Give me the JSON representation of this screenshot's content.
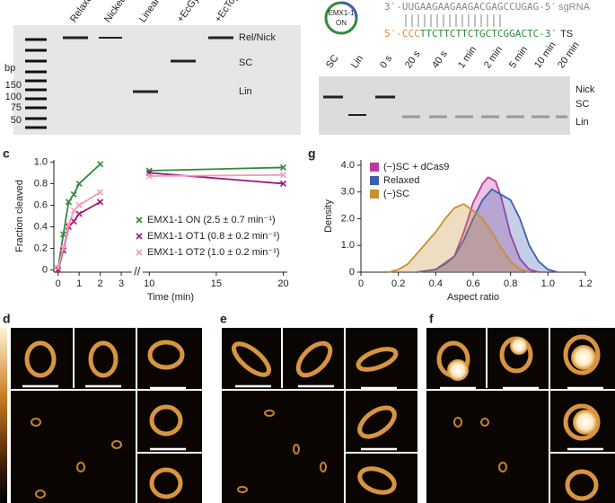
{
  "gel_a": {
    "lanes": [
      "Relaxed",
      "Nicked",
      "Linear",
      "+EcGyr",
      "+EcTopoI"
    ],
    "ladder_unit": "bp",
    "ladder": [
      "150",
      "100",
      "75",
      "50"
    ],
    "bands": [
      "Rel/Nick",
      "SC",
      "Lin"
    ]
  },
  "gel_b": {
    "badge": [
      "EMX1-1",
      "ON"
    ],
    "sgrna": {
      "seq": "3′-UUGAAGAAGAAGACGAGCCUGAG-5′",
      "label": "sgRNA"
    },
    "ts": {
      "prefix": "5′-CCC",
      "seq": "TTCTTCTTCTGCTCGGACTC-3′",
      "label": "TS"
    },
    "lanes": [
      "SC",
      "Lin",
      "0 s",
      "20 s",
      "40 s",
      "1 min",
      "2 min",
      "5 min",
      "10 min",
      "20 min"
    ],
    "bands": [
      "Nick",
      "SC",
      "Lin"
    ]
  },
  "panel_letters": [
    "c",
    "g",
    "d",
    "e",
    "f"
  ],
  "chart_data": [
    {
      "type": "scatter",
      "xlabel": "Time (min)",
      "ylabel": "Fraction cleaved",
      "xlim_segments": [
        [
          -0.2,
          3.5
        ],
        [
          9.5,
          20.3
        ]
      ],
      "xticks": [
        0,
        1,
        2,
        3,
        10,
        15,
        20
      ],
      "ylim": [
        -0.02,
        1.02
      ],
      "yticks": [
        0,
        0.2,
        0.4,
        0.6,
        0.8,
        {
          "value": 1,
          "label": "1.0"
        }
      ],
      "series": [
        {
          "name": "EMX1-1 ON (2.5 ± 0.7 min⁻¹)",
          "color": "#2e8b3a",
          "x": [
            0,
            0.25,
            0.5,
            0.75,
            1,
            2,
            10,
            20
          ],
          "values": [
            0.02,
            0.33,
            0.63,
            0.7,
            0.8,
            0.98,
            0.92,
            0.95
          ]
        },
        {
          "name": "EMX1-1 OT1 (0.8 ± 0.2 min⁻¹)",
          "color": "#9b1b7d",
          "x": [
            0,
            0.25,
            0.5,
            0.75,
            1,
            2,
            10,
            20
          ],
          "values": [
            0,
            0.18,
            0.4,
            0.45,
            0.52,
            0.63,
            0.9,
            0.8
          ]
        },
        {
          "name": "EMX1-1 OT2 (1.0 ± 0.2 min⁻¹)",
          "color": "#f29bb8",
          "x": [
            0,
            0.25,
            0.5,
            0.75,
            1,
            2,
            10,
            20
          ],
          "values": [
            0.02,
            0.2,
            0.42,
            0.55,
            0.6,
            0.72,
            0.87,
            0.88
          ]
        }
      ]
    },
    {
      "type": "area",
      "xlabel": "Aspect ratio",
      "ylabel": "Density",
      "xlim": [
        0,
        1.2
      ],
      "xticks": [
        0,
        0.2,
        0.4,
        0.6,
        0.8,
        {
          "value": 1,
          "label": "1.0"
        },
        1.2
      ],
      "ylim": [
        0,
        4.2
      ],
      "yticks": [
        0,
        {
          "value": 1,
          "label": "1.0"
        },
        {
          "value": 2,
          "label": "2.0"
        },
        {
          "value": 3,
          "label": "3.0"
        },
        {
          "value": 4,
          "label": "4.0"
        }
      ],
      "series": [
        {
          "name": "(−)SC + dCas9",
          "color": "#c0399e",
          "x": [
            0.3,
            0.4,
            0.5,
            0.55,
            0.6,
            0.65,
            0.68,
            0.72,
            0.75,
            0.8,
            0.85,
            0.9,
            0.95
          ],
          "values": [
            0,
            0.1,
            0.6,
            1.5,
            2.6,
            3.3,
            3.55,
            3.4,
            2.8,
            1.4,
            0.5,
            0.1,
            0
          ]
        },
        {
          "name": "Relaxed",
          "color": "#3d5fb0",
          "x": [
            0.3,
            0.4,
            0.45,
            0.5,
            0.55,
            0.6,
            0.65,
            0.7,
            0.75,
            0.8,
            0.85,
            0.9,
            0.95,
            1.0,
            1.05
          ],
          "values": [
            0,
            0.1,
            0.3,
            0.6,
            1.2,
            2.0,
            2.7,
            3.1,
            2.9,
            2.7,
            2.0,
            1.0,
            0.4,
            0.1,
            0
          ]
        },
        {
          "name": "(−)SC",
          "color": "#c8902e",
          "x": [
            0.15,
            0.2,
            0.25,
            0.3,
            0.35,
            0.4,
            0.45,
            0.5,
            0.55,
            0.6,
            0.65,
            0.7,
            0.75,
            0.8,
            0.85,
            0.9
          ],
          "values": [
            0,
            0.1,
            0.3,
            0.7,
            1.1,
            1.5,
            2.0,
            2.4,
            2.55,
            2.3,
            2.0,
            1.5,
            0.9,
            0.4,
            0.1,
            0
          ]
        }
      ]
    }
  ]
}
